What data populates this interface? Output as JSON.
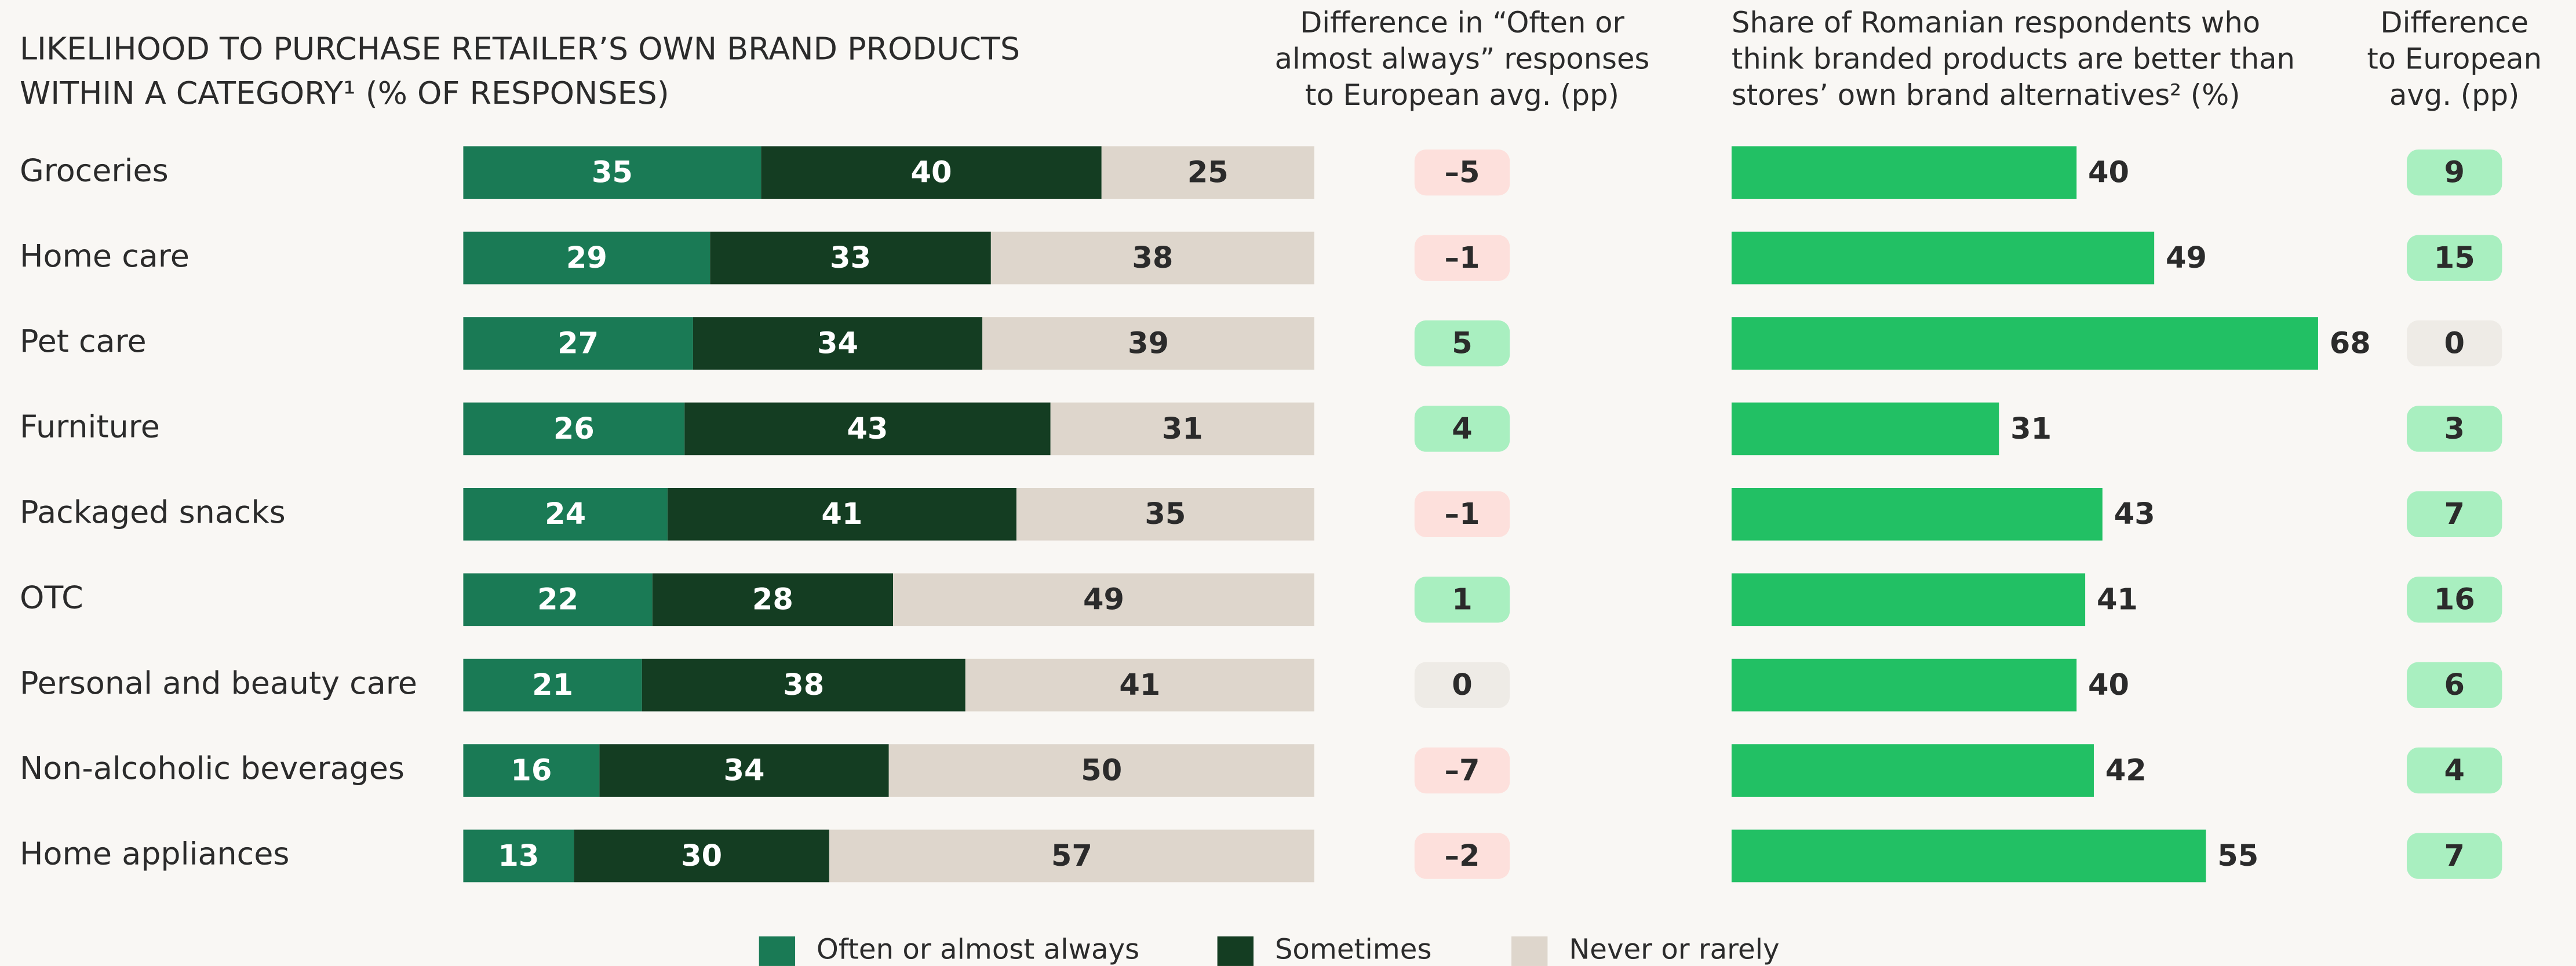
{
  "chart_data": [
    {
      "type": "stacked-bar",
      "title": [
        "LIKELIHOOD TO PURCHASE RETAILER’S OWN BRAND PRODUCTS",
        "WITHIN A CATEGORY¹ (% OF RESPONSES)"
      ],
      "categories": [
        "Groceries",
        "Home care",
        "Pet care",
        "Furniture",
        "Packaged snacks",
        "OTC",
        "Personal and beauty care",
        "Non-alcoholic beverages",
        "Home appliances"
      ],
      "series": [
        {
          "name": "Often or almost always",
          "color": "#1a7a55",
          "label_color": "#ffffff",
          "values": [
            35,
            29,
            27,
            26,
            24,
            22,
            21,
            16,
            13
          ]
        },
        {
          "name": "Sometimes",
          "color": "#143d22",
          "label_color": "#ffffff",
          "values": [
            40,
            33,
            34,
            43,
            41,
            28,
            38,
            34,
            30
          ]
        },
        {
          "name": "Never or rarely",
          "color": "#ded6cc",
          "label_color": "#2b2b2b",
          "values": [
            25,
            38,
            39,
            31,
            35,
            49,
            41,
            50,
            57
          ]
        }
      ]
    },
    {
      "type": "badge",
      "title": [
        "Difference in “Often or",
        "almost always” responses",
        "to European avg. (pp)"
      ],
      "values": [
        -5,
        -1,
        5,
        4,
        -1,
        1,
        0,
        -7,
        -2
      ],
      "value_labels": [
        "–5",
        "–1",
        "5",
        "4",
        "–1",
        "1",
        "0",
        "–7",
        "–2"
      ],
      "colors": {
        "negative": "#fde0dc",
        "positive": "#a9efc0",
        "zero": "#eeebe6"
      }
    },
    {
      "type": "bar",
      "title": [
        "Share of Romanian respondents who",
        "think branded products are better than",
        "stores’ own brand alternatives² (%)"
      ],
      "values": [
        40,
        49,
        68,
        31,
        43,
        41,
        40,
        42,
        55
      ],
      "color": "#22c064"
    },
    {
      "type": "badge",
      "title": [
        "Difference",
        "to European",
        "avg. (pp)"
      ],
      "values": [
        9,
        15,
        0,
        3,
        7,
        16,
        6,
        4,
        7
      ],
      "colors": {
        "negative": "#fde0dc",
        "positive": "#a9efc0",
        "zero": "#eeebe6"
      }
    }
  ]
}
